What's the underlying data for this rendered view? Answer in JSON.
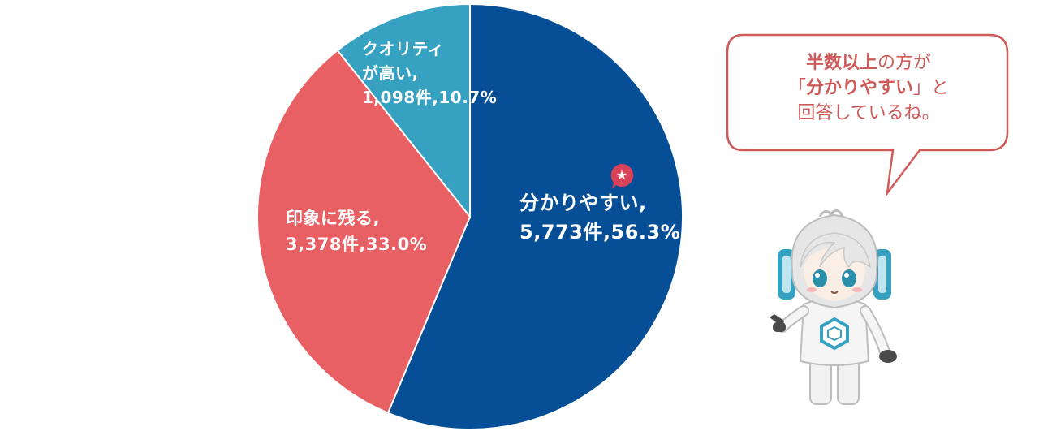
{
  "chart_data": {
    "type": "pie",
    "slices": [
      {
        "label": "分かりやすい",
        "count": "5,773件",
        "percent": "56.3%",
        "value": 56.3,
        "color": "#064f96"
      },
      {
        "label": "印象に残る",
        "count": "3,378件",
        "percent": "33.0%",
        "value": 33.0,
        "color": "#e86063"
      },
      {
        "label": "クオリティが高い",
        "count": "1,098件",
        "percent": "10.7%",
        "value": 10.7,
        "color": "#36a1c0"
      }
    ],
    "start_angle_deg": 0,
    "direction": "clockwise",
    "slice_labels": [
      {
        "lines": [
          "分かりやすい,",
          "5,773件,56.3%"
        ]
      },
      {
        "lines": [
          "印象に残る,",
          "3,378件,33.0%"
        ]
      },
      {
        "lines": [
          "クオリティ",
          "が高い,",
          "1,098件,10.7%"
        ]
      }
    ]
  },
  "speech_bubble": {
    "line1_bold": "半数以上",
    "line1_rest": "の方が",
    "line2_open": "「",
    "line2_bold": "分かりやすい",
    "line2_close": "」と",
    "line3": "回答しているね。",
    "text_color": "#cf5a5a",
    "border_color": "#cf5a5a"
  },
  "badge": {
    "symbol": "★",
    "color": "#d9435a"
  },
  "mascot": {
    "description_icon": "robot-mascot-icon",
    "accent_color": "#36a1c0"
  }
}
